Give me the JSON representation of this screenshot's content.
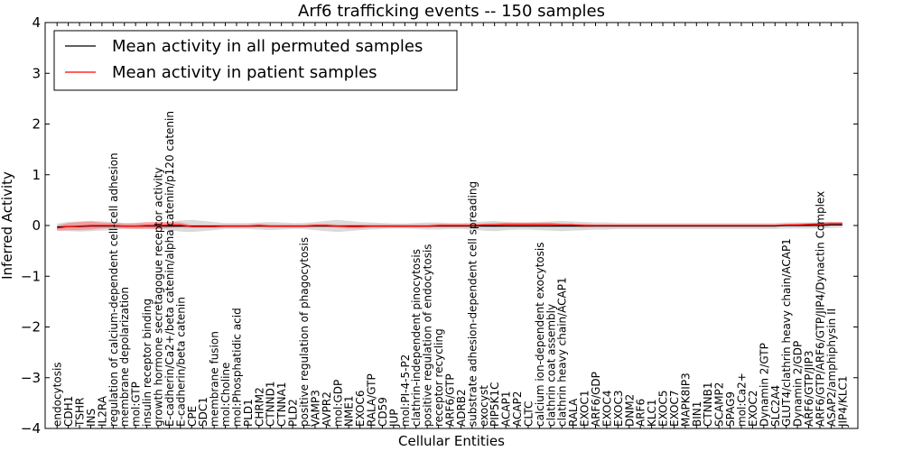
{
  "chart_data": {
    "type": "line",
    "title": "Arf6 trafficking events -- 150 samples",
    "xlabel": "Cellular Entities",
    "ylabel": "Inferred Activity",
    "ylim": [
      -4,
      4
    ],
    "yticks": [
      4,
      3,
      2,
      1,
      0,
      -1,
      -2,
      -3,
      -4
    ],
    "ytick_labels": [
      "4",
      "3",
      "2",
      "1",
      "0",
      "−1",
      "−2",
      "−3",
      "−4"
    ],
    "legend": {
      "position": "top-left",
      "entries": [
        {
          "label": "Mean activity in all permuted samples",
          "color": "#000000"
        },
        {
          "label": "Mean activity in patient samples",
          "color": "#ff0000"
        }
      ]
    },
    "categories": [
      "endocytosis",
      "CDH1",
      "TSHR",
      "INS",
      "IL2RA",
      "regulation of calcium-dependent cell-cell adhesion",
      "membrane depolarization",
      "mol:GTP",
      "insulin receptor binding",
      "growth hormone secretagogue receptor activity",
      "E-cadherin/Ca2+/beta catenin/alpha catenin/p120 catenin",
      "E-cadherin/beta catenin",
      "CPE",
      "SDC1",
      "membrane fusion",
      "mol:Choline",
      "mol:Phosphatidic acid",
      "PLD1",
      "CHRM2",
      "CTNND1",
      "CTNNA1",
      "PLD2",
      "positive regulation of phagocytosis",
      "VAMP3",
      "AVPR2",
      "mol:GDP",
      "NME1",
      "EXOC6",
      "RALA/GTP",
      "CD59",
      "JUP",
      "mol:PI-4-5-P2",
      "clathrin-independent pinocytosis",
      "positive regulation of endocytosis",
      "receptor recycling",
      "ARF6/GTP",
      "ADRB2",
      "substrate adhesion-dependent cell spreading",
      "exocyst",
      "PIP5K1C",
      "ACAP1",
      "ACAP2",
      "CLTC",
      "calcium ion-dependent exocytosis",
      "clathrin coat assembly",
      "clathrin heavy chain/ACAP1",
      "RALA",
      "EXOC1",
      "ARF6/GDP",
      "EXOC4",
      "EXOC3",
      "DNM2",
      "ARF6",
      "KLC1",
      "EXOC5",
      "EXOC7",
      "MAPK8IP3",
      "BIN1",
      "CTNNB1",
      "SCAMP2",
      "SPAG9",
      "mol:Ca2+",
      "EXOC2",
      "Dynamin 2/GTP",
      "SLC2A4",
      "GLUT4/clathrin heavy chain/ACAP1",
      "Dynamin 2/GDP",
      "ARF6/GTP/JIP3",
      "ARF6/GTP/ARF6/GTP/JIP4/Dynactin Complex",
      "ASAP2/amphiphysin II",
      "JIP4/KLC1"
    ],
    "series": [
      {
        "name": "Mean activity in all permuted samples",
        "color": "#000000",
        "values": [
          -0.03,
          -0.02,
          -0.02,
          -0.01,
          -0.01,
          -0.01,
          -0.01,
          -0.01,
          -0.01,
          -0.01,
          -0.01,
          -0.01,
          -0.01,
          -0.01,
          -0.01,
          -0.01,
          -0.01,
          -0.01,
          -0.01,
          -0.01,
          -0.01,
          -0.01,
          -0.01,
          -0.01,
          -0.01,
          -0.01,
          -0.01,
          -0.01,
          -0.01,
          -0.01,
          -0.01,
          -0.01,
          -0.01,
          -0.01,
          -0.01,
          -0.01,
          -0.01,
          -0.01,
          -0.01,
          -0.01,
          -0.01,
          -0.01,
          -0.01,
          -0.01,
          -0.01,
          -0.01,
          -0.01,
          -0.01,
          -0.01,
          -0.01,
          -0.01,
          -0.01,
          -0.01,
          -0.01,
          -0.01,
          -0.01,
          -0.01,
          -0.01,
          -0.01,
          -0.01,
          -0.01,
          -0.01,
          -0.01,
          -0.01,
          -0.01,
          0.0,
          0.0,
          0.0,
          0.0,
          0.01,
          0.01
        ],
        "band": [
          0.07,
          0.09,
          0.1,
          0.1,
          0.09,
          0.08,
          0.06,
          0.05,
          0.05,
          0.06,
          0.08,
          0.11,
          0.12,
          0.1,
          0.08,
          0.06,
          0.06,
          0.06,
          0.07,
          0.08,
          0.07,
          0.06,
          0.06,
          0.08,
          0.1,
          0.12,
          0.1,
          0.08,
          0.07,
          0.06,
          0.05,
          0.05,
          0.06,
          0.07,
          0.07,
          0.06,
          0.06,
          0.07,
          0.09,
          0.1,
          0.08,
          0.07,
          0.07,
          0.08,
          0.09,
          0.1,
          0.09,
          0.08,
          0.07,
          0.07,
          0.06,
          0.06,
          0.06,
          0.06,
          0.06,
          0.06,
          0.06,
          0.06,
          0.06,
          0.06,
          0.06,
          0.06,
          0.06,
          0.06,
          0.06,
          0.06,
          0.06,
          0.06,
          0.06,
          0.06,
          0.05
        ]
      },
      {
        "name": "Mean activity in patient samples",
        "color": "#ff0000",
        "values": [
          -0.05,
          -0.02,
          -0.01,
          0.0,
          0.0,
          0.0,
          -0.01,
          -0.01,
          0.0,
          0.0,
          0.01,
          0.01,
          -0.02,
          -0.02,
          -0.02,
          -0.01,
          -0.01,
          -0.01,
          0.0,
          -0.01,
          -0.01,
          -0.01,
          -0.01,
          0.0,
          0.0,
          -0.01,
          -0.02,
          -0.02,
          -0.01,
          -0.01,
          -0.01,
          -0.01,
          -0.01,
          -0.01,
          0.0,
          0.0,
          0.0,
          0.0,
          0.01,
          0.01,
          0.02,
          0.02,
          0.02,
          0.02,
          0.02,
          0.01,
          0.01,
          0.0,
          0.0,
          0.0,
          0.0,
          0.0,
          0.0,
          0.0,
          0.0,
          0.0,
          0.0,
          0.0,
          0.0,
          0.0,
          0.0,
          0.0,
          0.0,
          0.0,
          0.0,
          0.01,
          0.01,
          0.02,
          0.03,
          0.04,
          0.04
        ],
        "band": [
          0.05,
          0.07,
          0.08,
          0.08,
          0.06,
          0.05,
          0.05,
          0.06,
          0.07,
          0.07,
          0.06,
          0.05,
          0.03,
          0.03,
          0.03,
          0.03,
          0.03,
          0.03,
          0.03,
          0.03,
          0.03,
          0.03,
          0.03,
          0.03,
          0.03,
          0.03,
          0.04,
          0.04,
          0.03,
          0.03,
          0.03,
          0.03,
          0.03,
          0.03,
          0.03,
          0.03,
          0.03,
          0.03,
          0.03,
          0.04,
          0.04,
          0.04,
          0.04,
          0.04,
          0.04,
          0.03,
          0.03,
          0.03,
          0.02,
          0.02,
          0.02,
          0.02,
          0.02,
          0.02,
          0.02,
          0.02,
          0.02,
          0.02,
          0.02,
          0.02,
          0.02,
          0.02,
          0.02,
          0.02,
          0.02,
          0.02,
          0.03,
          0.03,
          0.03,
          0.03,
          0.03
        ]
      }
    ]
  }
}
